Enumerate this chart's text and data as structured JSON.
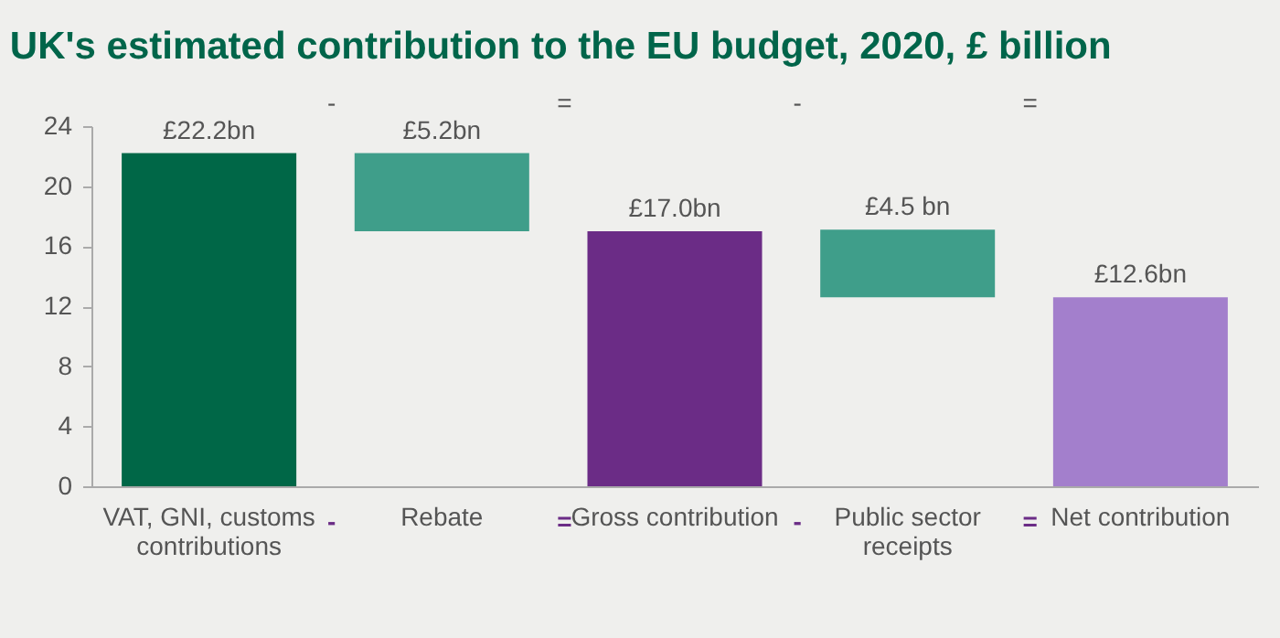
{
  "chart_data": {
    "type": "bar",
    "title": "UK's estimated contribution to the EU budget, 2020, £ billion",
    "categories": [
      "VAT, GNI, customs contributions",
      "Rebate",
      "Gross contribution",
      "Public sector receipts",
      "Net contribution"
    ],
    "values": [
      22.2,
      5.2,
      17.0,
      4.5,
      12.6
    ],
    "base": [
      0,
      17.0,
      0,
      12.6,
      0
    ],
    "colors": [
      "#006747",
      "#3f9e8a",
      "#6b2c86",
      "#3f9e8a",
      "#a37fcc"
    ],
    "value_labels": [
      "£22.2bn",
      "£5.2bn",
      "£17.0bn",
      "£4.5 bn",
      "£12.6bn"
    ],
    "annotations": [
      "-",
      "=",
      "-",
      "=",
      "-",
      "=",
      "-",
      "="
    ],
    "ylim": [
      0,
      24
    ],
    "yticks": [
      0,
      4,
      8,
      12,
      16,
      20,
      24
    ],
    "grid": false
  }
}
